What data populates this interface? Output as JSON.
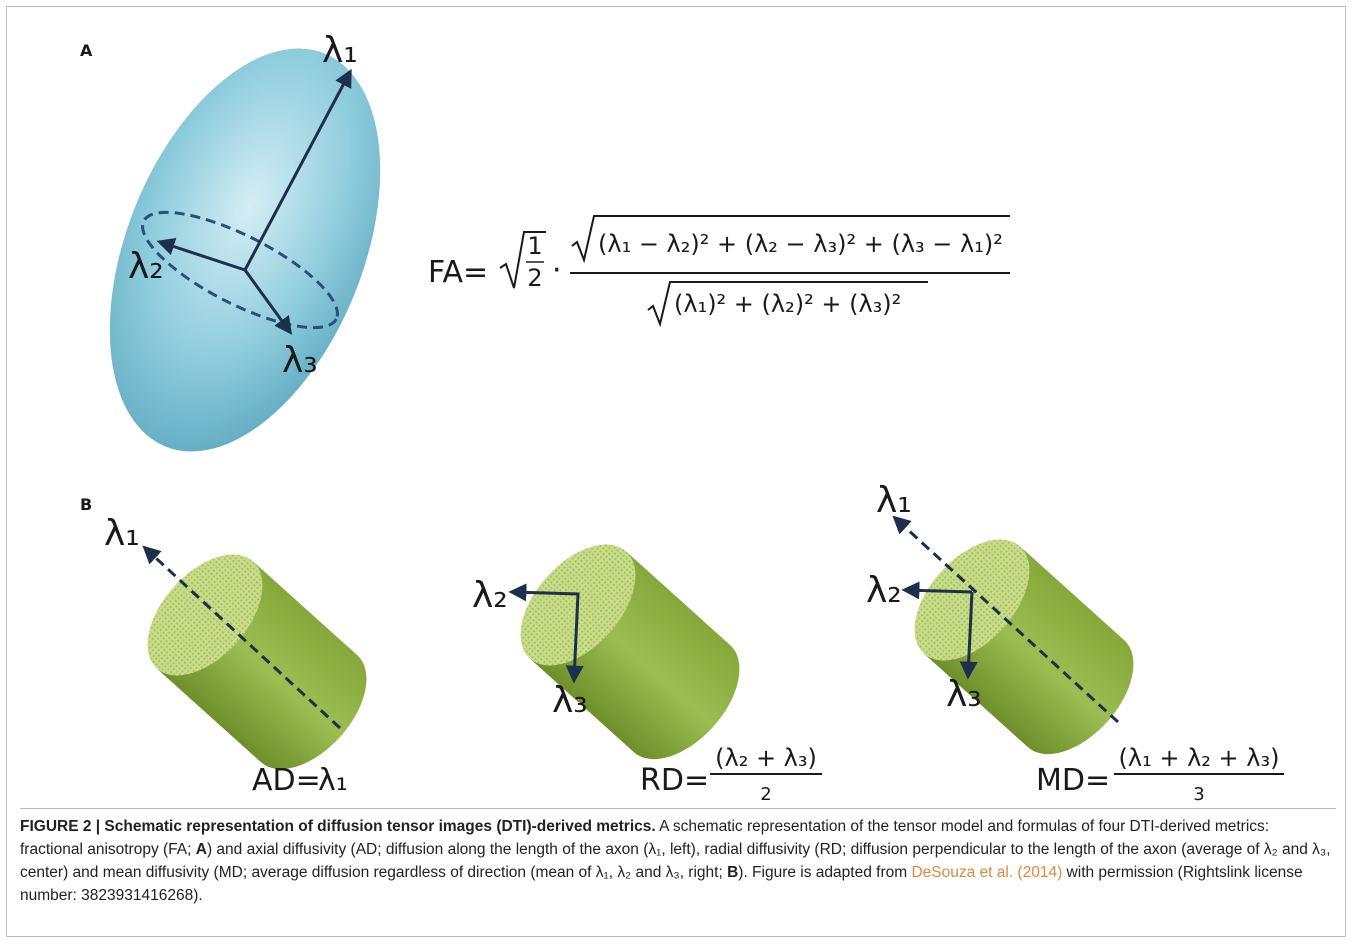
{
  "panel_a": {
    "label": "A",
    "axes": [
      "λ₁",
      "λ₂",
      "λ₃"
    ],
    "formula": {
      "lhs": "FA=",
      "factor_num": "1",
      "factor_den": "2",
      "dot": "·",
      "numerator": "(λ₁ − λ₂)² + (λ₂ − λ₃)² + (λ₃ − λ₁)²",
      "denominator": "(λ₁)² + (λ₂)² + (λ₃)²"
    }
  },
  "panel_b": {
    "label": "B",
    "ad": {
      "axes": [
        "λ₁"
      ],
      "lhs": "AD=",
      "rhs": "λ₁"
    },
    "rd": {
      "axes": [
        "λ₂",
        "λ₃"
      ],
      "lhs": "RD=",
      "numerator": "(λ₂ + λ₃)",
      "denominator": "2"
    },
    "md": {
      "axes": [
        "λ₁",
        "λ₂",
        "λ₃"
      ],
      "lhs": "MD=",
      "numerator": "(λ₁ + λ₂ + λ₃)",
      "denominator": "3"
    }
  },
  "caption": {
    "title": "FIGURE 2 | Schematic representation of diffusion tensor images (DTI)-derived metrics.",
    "text_1": " A schematic representation of the tensor model and formulas of four DTI-derived metrics: fractional anisotropy (FA; ",
    "ref_a": "A",
    "text_2": ") and axial diffusivity (AD; diffusion along the length of the axon (λ₁, left), radial diffusivity (RD; diffusion perpendicular to the length of the axon (average of λ₂ and λ₃, center) and mean diffusivity (MD; average diffusion regardless of direction (mean of λ₁, λ₂ and λ₃, right; ",
    "ref_b": "B",
    "text_3": "). Figure is adapted from ",
    "link": "DeSouza et al. (2014)",
    "text_4": " with permission (Rightslink license number: 3823931416268)."
  }
}
